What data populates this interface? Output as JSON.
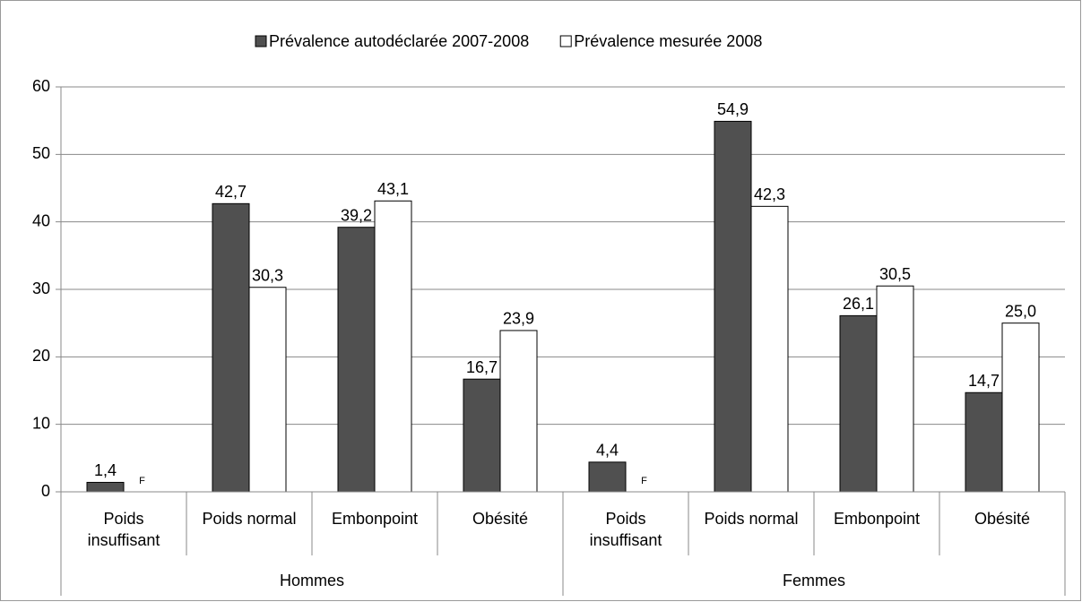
{
  "chart_data": {
    "type": "bar",
    "groups": [
      {
        "name": "Hommes",
        "categories": [
          "Poids insuffisant",
          "Poids normal",
          "Embonpoint",
          "Obésité"
        ]
      },
      {
        "name": "Femmes",
        "categories": [
          "Poids insuffisant",
          "Poids normal",
          "Embonpoint",
          "Obésité"
        ]
      }
    ],
    "series": [
      {
        "name": "Prévalence autodéclarée 2007-2008",
        "color": "#505050",
        "values": [
          1.4,
          42.7,
          39.2,
          16.7,
          4.4,
          54.9,
          26.1,
          14.7
        ],
        "value_labels": [
          "1,4",
          "42,7",
          "39,2",
          "16,7",
          "4,4",
          "54,9",
          "26,1",
          "14,7"
        ]
      },
      {
        "name": "Prévalence mesurée 2008",
        "color": "#ffffff",
        "values": [
          null,
          30.3,
          43.1,
          23.9,
          null,
          42.3,
          30.5,
          25.0
        ],
        "value_labels": [
          "F",
          "30,3",
          "43,1",
          "23,9",
          "F",
          "42,3",
          "30,5",
          "25,0"
        ]
      }
    ],
    "ylim": [
      0,
      60
    ],
    "yticks": [
      0,
      10,
      20,
      30,
      40,
      50,
      60
    ],
    "grid": true,
    "legend": "top"
  }
}
